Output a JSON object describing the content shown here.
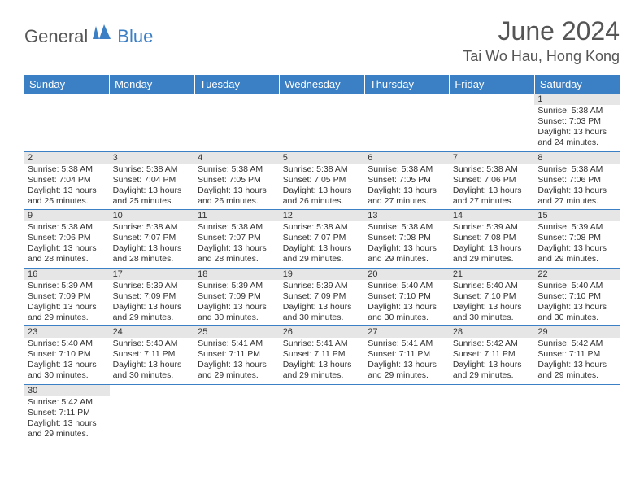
{
  "logo": {
    "general": "General",
    "blue": "Blue"
  },
  "header": {
    "title": "June 2024",
    "location": "Tai Wo Hau, Hong Kong"
  },
  "colors": {
    "header_bg": "#3b7fc4",
    "header_text": "#ffffff",
    "daynum_bg": "#e6e6e6",
    "border": "#3b7fc4",
    "body_text": "#333333",
    "logo_gray": "#555555",
    "logo_blue": "#3b7fc4"
  },
  "dayNames": [
    "Sunday",
    "Monday",
    "Tuesday",
    "Wednesday",
    "Thursday",
    "Friday",
    "Saturday"
  ],
  "weeks": [
    [
      {
        "n": "",
        "lines": []
      },
      {
        "n": "",
        "lines": []
      },
      {
        "n": "",
        "lines": []
      },
      {
        "n": "",
        "lines": []
      },
      {
        "n": "",
        "lines": []
      },
      {
        "n": "",
        "lines": []
      },
      {
        "n": "1",
        "lines": [
          "Sunrise: 5:38 AM",
          "Sunset: 7:03 PM",
          "Daylight: 13 hours",
          "and 24 minutes."
        ]
      }
    ],
    [
      {
        "n": "2",
        "lines": [
          "Sunrise: 5:38 AM",
          "Sunset: 7:04 PM",
          "Daylight: 13 hours",
          "and 25 minutes."
        ]
      },
      {
        "n": "3",
        "lines": [
          "Sunrise: 5:38 AM",
          "Sunset: 7:04 PM",
          "Daylight: 13 hours",
          "and 25 minutes."
        ]
      },
      {
        "n": "4",
        "lines": [
          "Sunrise: 5:38 AM",
          "Sunset: 7:05 PM",
          "Daylight: 13 hours",
          "and 26 minutes."
        ]
      },
      {
        "n": "5",
        "lines": [
          "Sunrise: 5:38 AM",
          "Sunset: 7:05 PM",
          "Daylight: 13 hours",
          "and 26 minutes."
        ]
      },
      {
        "n": "6",
        "lines": [
          "Sunrise: 5:38 AM",
          "Sunset: 7:05 PM",
          "Daylight: 13 hours",
          "and 27 minutes."
        ]
      },
      {
        "n": "7",
        "lines": [
          "Sunrise: 5:38 AM",
          "Sunset: 7:06 PM",
          "Daylight: 13 hours",
          "and 27 minutes."
        ]
      },
      {
        "n": "8",
        "lines": [
          "Sunrise: 5:38 AM",
          "Sunset: 7:06 PM",
          "Daylight: 13 hours",
          "and 27 minutes."
        ]
      }
    ],
    [
      {
        "n": "9",
        "lines": [
          "Sunrise: 5:38 AM",
          "Sunset: 7:06 PM",
          "Daylight: 13 hours",
          "and 28 minutes."
        ]
      },
      {
        "n": "10",
        "lines": [
          "Sunrise: 5:38 AM",
          "Sunset: 7:07 PM",
          "Daylight: 13 hours",
          "and 28 minutes."
        ]
      },
      {
        "n": "11",
        "lines": [
          "Sunrise: 5:38 AM",
          "Sunset: 7:07 PM",
          "Daylight: 13 hours",
          "and 28 minutes."
        ]
      },
      {
        "n": "12",
        "lines": [
          "Sunrise: 5:38 AM",
          "Sunset: 7:07 PM",
          "Daylight: 13 hours",
          "and 29 minutes."
        ]
      },
      {
        "n": "13",
        "lines": [
          "Sunrise: 5:38 AM",
          "Sunset: 7:08 PM",
          "Daylight: 13 hours",
          "and 29 minutes."
        ]
      },
      {
        "n": "14",
        "lines": [
          "Sunrise: 5:39 AM",
          "Sunset: 7:08 PM",
          "Daylight: 13 hours",
          "and 29 minutes."
        ]
      },
      {
        "n": "15",
        "lines": [
          "Sunrise: 5:39 AM",
          "Sunset: 7:08 PM",
          "Daylight: 13 hours",
          "and 29 minutes."
        ]
      }
    ],
    [
      {
        "n": "16",
        "lines": [
          "Sunrise: 5:39 AM",
          "Sunset: 7:09 PM",
          "Daylight: 13 hours",
          "and 29 minutes."
        ]
      },
      {
        "n": "17",
        "lines": [
          "Sunrise: 5:39 AM",
          "Sunset: 7:09 PM",
          "Daylight: 13 hours",
          "and 29 minutes."
        ]
      },
      {
        "n": "18",
        "lines": [
          "Sunrise: 5:39 AM",
          "Sunset: 7:09 PM",
          "Daylight: 13 hours",
          "and 30 minutes."
        ]
      },
      {
        "n": "19",
        "lines": [
          "Sunrise: 5:39 AM",
          "Sunset: 7:09 PM",
          "Daylight: 13 hours",
          "and 30 minutes."
        ]
      },
      {
        "n": "20",
        "lines": [
          "Sunrise: 5:40 AM",
          "Sunset: 7:10 PM",
          "Daylight: 13 hours",
          "and 30 minutes."
        ]
      },
      {
        "n": "21",
        "lines": [
          "Sunrise: 5:40 AM",
          "Sunset: 7:10 PM",
          "Daylight: 13 hours",
          "and 30 minutes."
        ]
      },
      {
        "n": "22",
        "lines": [
          "Sunrise: 5:40 AM",
          "Sunset: 7:10 PM",
          "Daylight: 13 hours",
          "and 30 minutes."
        ]
      }
    ],
    [
      {
        "n": "23",
        "lines": [
          "Sunrise: 5:40 AM",
          "Sunset: 7:10 PM",
          "Daylight: 13 hours",
          "and 30 minutes."
        ]
      },
      {
        "n": "24",
        "lines": [
          "Sunrise: 5:40 AM",
          "Sunset: 7:11 PM",
          "Daylight: 13 hours",
          "and 30 minutes."
        ]
      },
      {
        "n": "25",
        "lines": [
          "Sunrise: 5:41 AM",
          "Sunset: 7:11 PM",
          "Daylight: 13 hours",
          "and 29 minutes."
        ]
      },
      {
        "n": "26",
        "lines": [
          "Sunrise: 5:41 AM",
          "Sunset: 7:11 PM",
          "Daylight: 13 hours",
          "and 29 minutes."
        ]
      },
      {
        "n": "27",
        "lines": [
          "Sunrise: 5:41 AM",
          "Sunset: 7:11 PM",
          "Daylight: 13 hours",
          "and 29 minutes."
        ]
      },
      {
        "n": "28",
        "lines": [
          "Sunrise: 5:42 AM",
          "Sunset: 7:11 PM",
          "Daylight: 13 hours",
          "and 29 minutes."
        ]
      },
      {
        "n": "29",
        "lines": [
          "Sunrise: 5:42 AM",
          "Sunset: 7:11 PM",
          "Daylight: 13 hours",
          "and 29 minutes."
        ]
      }
    ],
    [
      {
        "n": "30",
        "lines": [
          "Sunrise: 5:42 AM",
          "Sunset: 7:11 PM",
          "Daylight: 13 hours",
          "and 29 minutes."
        ]
      },
      {
        "n": "",
        "lines": []
      },
      {
        "n": "",
        "lines": []
      },
      {
        "n": "",
        "lines": []
      },
      {
        "n": "",
        "lines": []
      },
      {
        "n": "",
        "lines": []
      },
      {
        "n": "",
        "lines": []
      }
    ]
  ]
}
